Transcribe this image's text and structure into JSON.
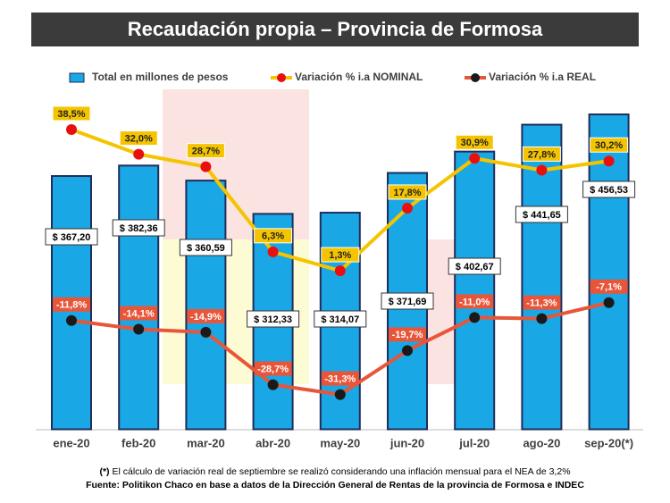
{
  "chart_data": {
    "type": "bar_line",
    "title": "Recaudación propia – Provincia de Formosa",
    "categories": [
      "ene-20",
      "feb-20",
      "mar-20",
      "abr-20",
      "may-20",
      "jun-20",
      "jul-20",
      "ago-20",
      "sep-20(*)"
    ],
    "series": [
      {
        "name": "Total en millones de pesos",
        "type": "bar",
        "color": "#1aa7e6",
        "values": [
          367.2,
          382.36,
          360.59,
          312.33,
          314.07,
          371.69,
          402.67,
          441.65,
          456.53
        ],
        "value_labels": [
          "$ 367,20",
          "$ 382,36",
          "$ 360,59",
          "$ 312,33",
          "$ 314,07",
          "$ 371,69",
          "$ 402,67",
          "$ 441,65",
          "$ 456,53"
        ]
      },
      {
        "name": "Variación % i.a NOMINAL",
        "type": "line",
        "axis": "y2",
        "color": "#f5c400",
        "marker_color": "#e8100f",
        "values": [
          38.5,
          32.0,
          28.7,
          6.3,
          1.3,
          17.8,
          30.9,
          27.8,
          30.2
        ],
        "value_labels": [
          "38,5%",
          "32,0%",
          "28,7%",
          "6,3%",
          "1,3%",
          "17,8%",
          "30,9%",
          "27,8%",
          "30,2%"
        ]
      },
      {
        "name": "Variación % i.a REAL",
        "type": "line",
        "axis": "y2",
        "color": "#e8563a",
        "marker_color": "#1a1a1a",
        "values": [
          -11.8,
          -14.1,
          -14.9,
          -28.7,
          -31.3,
          -19.7,
          -11.0,
          -11.3,
          -7.1
        ],
        "value_labels": [
          "-11,8%",
          "-14,1%",
          "-14,9%",
          "-28,7%",
          "-31,3%",
          "-19,7%",
          "-11,0%",
          "-11,3%",
          "-7,1%"
        ]
      }
    ],
    "footnote_marker": "(*)",
    "footnote": " El cálculo de variación real de septiembre se realizó considerando una inflación mensual para el NEA de 3,2%",
    "source": "Fuente: Politikon Chaco en base a datos de la Dirección General de Rentas de la provincia de Formosa e INDEC"
  }
}
